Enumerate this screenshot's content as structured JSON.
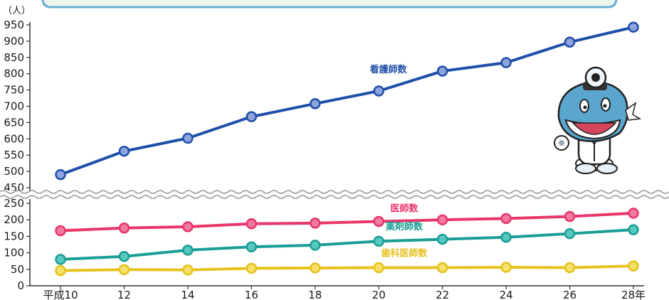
{
  "chart_data": {
    "type": "line",
    "unit_label": "（人）",
    "categories": [
      "平成10",
      "12",
      "14",
      "16",
      "18",
      "20",
      "22",
      "24",
      "26",
      "28年"
    ],
    "axis_break": {
      "lower_max": 250,
      "upper_min": 450
    },
    "ylim": [
      0,
      950
    ],
    "yticks": [
      0,
      50,
      100,
      150,
      200,
      250,
      450,
      500,
      550,
      600,
      650,
      700,
      750,
      800,
      850,
      900,
      950
    ],
    "grid": false,
    "series": [
      {
        "name": "看護師数",
        "color": "#1f4fa8",
        "marker": "#8fa4df",
        "values": [
          490,
          562,
          602,
          668,
          708,
          747,
          808,
          834,
          897,
          943
        ]
      },
      {
        "name": "医師数",
        "color": "#e8366a",
        "marker": "#f07aa0",
        "values": [
          167,
          175,
          179,
          188,
          190,
          195,
          200,
          204,
          210,
          220
        ]
      },
      {
        "name": "薬剤師数",
        "color": "#1a9e96",
        "marker": "#57c8bf",
        "values": [
          80,
          89,
          108,
          118,
          123,
          135,
          141,
          147,
          158,
          170
        ]
      },
      {
        "name": "歯科医師数",
        "color": "#e6c21c",
        "marker": "#f4e06a",
        "values": [
          46,
          49,
          48,
          53,
          54,
          55,
          55,
          56,
          55,
          60
        ]
      }
    ]
  },
  "colors": {
    "banner_border": "#6aaed3",
    "banner_fill": "#eaf6ec",
    "axis": "#333333"
  },
  "mascot": {
    "icon": "doctor-character-icon"
  }
}
